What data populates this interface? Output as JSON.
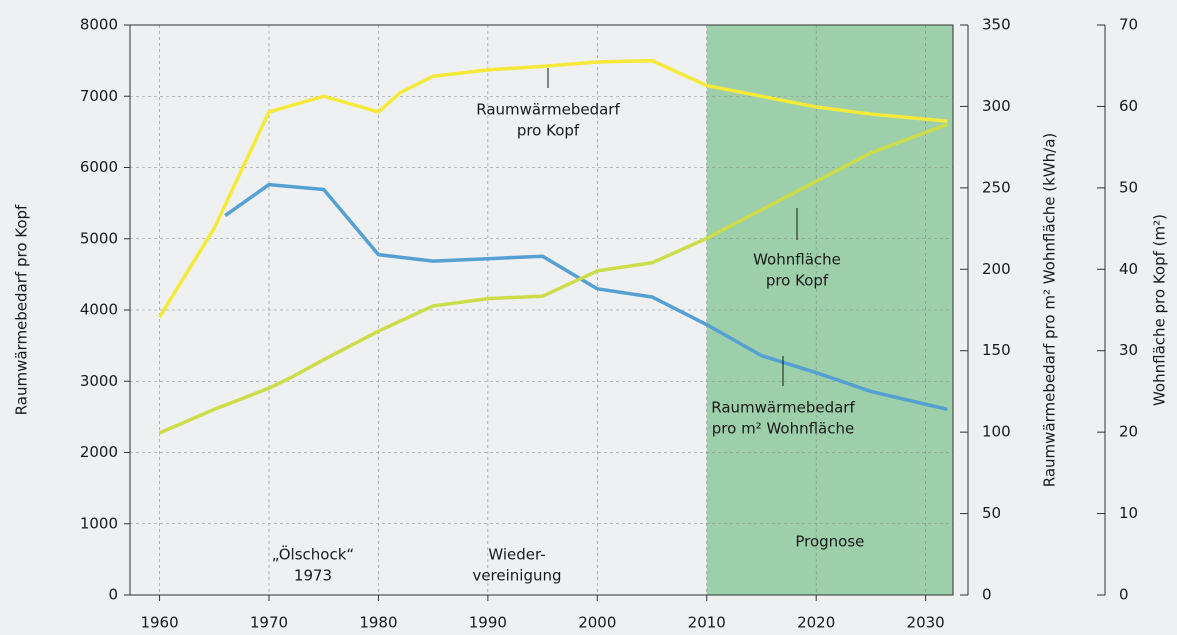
{
  "chart_data": {
    "type": "line",
    "y_label": "Raumwärmebedarf pro Kopf",
    "y2_label": "Raumwärmebedarf pro m² Wohnfläche (kWh/a)",
    "y3_label": "Wohnfläche pro Kopf (m²)",
    "xlim": [
      1957.3,
      2032.5
    ],
    "xticks": [
      1960,
      1970,
      1980,
      1990,
      2000,
      2010,
      2020,
      2030
    ],
    "ylim": [
      0,
      8000
    ],
    "yticks": [
      0,
      1000,
      2000,
      3000,
      4000,
      5000,
      6000,
      7000,
      8000
    ],
    "y2lim": [
      0,
      350
    ],
    "y2ticks": [
      0,
      50,
      100,
      150,
      200,
      250,
      300,
      350
    ],
    "y3lim": [
      0,
      70
    ],
    "y3ticks": [
      0,
      10,
      20,
      30,
      40,
      50,
      60,
      70
    ],
    "grid": true,
    "shade": {
      "label": "Prognose",
      "from": 2010,
      "color": "#9ccfaa"
    },
    "series": [
      {
        "name": "Raumwärmebedarf pro Kopf",
        "color": "#f5ea3a",
        "axis": "y",
        "x": [
          1960,
          1965,
          1970,
          1975,
          1980,
          1982,
          1985,
          1990,
          1995,
          2000,
          2005,
          2010,
          2015,
          2020,
          2025,
          2032
        ],
        "values": [
          3900,
          5150,
          6780,
          7000,
          6780,
          7050,
          7280,
          7370,
          7420,
          7480,
          7500,
          7150,
          7000,
          6850,
          6750,
          6650
        ]
      },
      {
        "name": "Raumwärmebedarf pro m² Wohnfläche",
        "color": "#55a0d2",
        "axis": "y2",
        "x": [
          1966,
          1970,
          1975,
          1980,
          1985,
          1990,
          1995,
          2000,
          2005,
          2010,
          2015,
          2020,
          2025,
          2032
        ],
        "values": [
          233,
          252,
          249,
          209,
          205,
          206.5,
          208,
          188,
          183,
          166,
          147,
          136.5,
          125,
          114
        ]
      },
      {
        "name": "Wohnfläche pro Kopf",
        "color": "#cddd4a",
        "axis": "y3",
        "x": [
          1960,
          1965,
          1970,
          1972,
          1975,
          1980,
          1985,
          1990,
          1995,
          2000,
          2005,
          2010,
          2015,
          2020,
          2025,
          2032
        ],
        "values": [
          19.9,
          22.8,
          25.4,
          26.7,
          28.9,
          32.4,
          35.5,
          36.4,
          36.7,
          39.8,
          40.8,
          43.8,
          47.3,
          50.8,
          54.3,
          57.8
        ]
      }
    ],
    "annotations": [
      {
        "lines": [
          "Raumwärmebedarf",
          "pro Kopf"
        ]
      },
      {
        "lines": [
          "Wohnfläche",
          "pro Kopf"
        ]
      },
      {
        "lines": [
          "Raumwärmebedarf",
          "pro m² Wohnfläche"
        ]
      },
      {
        "lines": [
          "„Ölschock“",
          "1973"
        ]
      },
      {
        "lines": [
          "Wieder-",
          "vereinigung"
        ]
      }
    ]
  }
}
